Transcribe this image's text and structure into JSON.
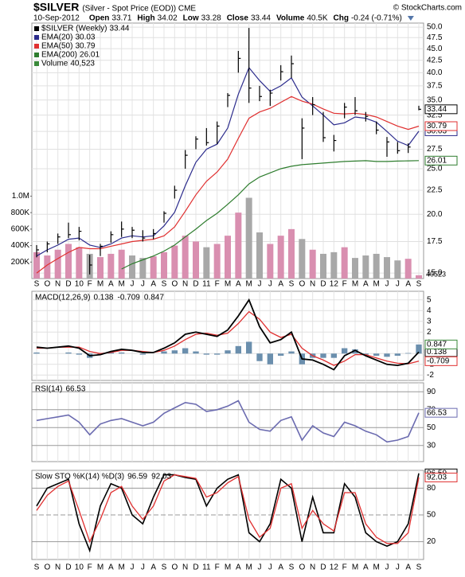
{
  "header": {
    "copyright": "© StockCharts.com",
    "date": "10-Sep-2012",
    "fields": [
      {
        "label": "Open",
        "value": 33.71
      },
      {
        "label": "High",
        "value": 34.02
      },
      {
        "label": "Low",
        "value": 33.28
      },
      {
        "label": "Close",
        "value": 33.44
      },
      {
        "label": "Volume",
        "value": "40.5K"
      },
      {
        "label": "Chg",
        "value": "-0.24 (-0.71%)"
      }
    ]
  },
  "chart_data": [
    {
      "type": "ohlc",
      "title": "$SILVER",
      "subtitle": "(Silver - Spot Price (EOD)) CME",
      "name": "$SILVER (Weekly)",
      "color": "#000000",
      "xtick_labels": [
        "S",
        "O",
        "N",
        "D",
        "10",
        "F",
        "M",
        "A",
        "M",
        "J",
        "J",
        "A",
        "S",
        "O",
        "N",
        "D",
        "11",
        "F",
        "M",
        "A",
        "M",
        "J",
        "J",
        "A",
        "S",
        "O",
        "N",
        "D",
        "12",
        "F",
        "M",
        "A",
        "M",
        "J",
        "J",
        "A",
        "S"
      ],
      "high": [
        17.2,
        17.5,
        18.2,
        19.2,
        18.8,
        16.4,
        17.3,
        18.4,
        19.3,
        18.8,
        18.5,
        18.6,
        20.3,
        23.0,
        27.4,
        29.3,
        30.5,
        31.5,
        36.2,
        44.5,
        49.8,
        37.5,
        36.8,
        41.5,
        43.5,
        32.0,
        35.5,
        33.0,
        29.5,
        34.5,
        35.5,
        33.0,
        31.5,
        29.2,
        28.5,
        28.3,
        34.02
      ],
      "low": [
        16.2,
        16.6,
        17.3,
        17.8,
        17.6,
        14.9,
        16.3,
        17.4,
        17.9,
        17.8,
        17.5,
        17.7,
        19.2,
        21.6,
        25.0,
        27.5,
        28.0,
        28.2,
        33.8,
        40.0,
        34.5,
        34.8,
        34.0,
        38.5,
        39.0,
        26.2,
        32.5,
        28.5,
        27.2,
        32.0,
        32.5,
        31.5,
        29.6,
        26.5,
        26.9,
        27.0,
        33.28
      ],
      "close": [
        16.8,
        17.3,
        17.9,
        18.1,
        18.4,
        15.6,
        17.1,
        18.1,
        18.6,
        18.5,
        17.8,
        18.2,
        20.1,
        22.5,
        26.7,
        28.9,
        28.4,
        30.8,
        35.8,
        42.9,
        37.1,
        35.6,
        36.2,
        40.2,
        41.8,
        30.5,
        34.2,
        29.1,
        28.7,
        33.8,
        33.2,
        32.3,
        30.2,
        28.5,
        27.3,
        27.8,
        33.44
      ],
      "overlays": [
        {
          "name": "EMA(20)",
          "color": "#2b2b8c",
          "values": [
            16.3,
            16.8,
            17.2,
            17.7,
            17.8,
            17.2,
            17.0,
            17.3,
            17.8,
            18.0,
            17.9,
            18.0,
            18.9,
            20.2,
            23.0,
            25.8,
            27.5,
            28.2,
            30.5,
            36.0,
            41.0,
            38.5,
            36.5,
            37.5,
            39.0,
            35.5,
            34.0,
            32.5,
            31.0,
            31.3,
            32.2,
            32.0,
            31.4,
            30.0,
            28.6,
            28.0,
            30.03
          ]
        },
        {
          "name": "EMA(50)",
          "color": "#e03030",
          "values": [
            15.0,
            15.6,
            16.1,
            16.6,
            17.0,
            16.9,
            16.9,
            17.1,
            17.3,
            17.5,
            17.6,
            17.7,
            18.0,
            18.8,
            20.3,
            22.0,
            23.5,
            24.6,
            26.2,
            29.0,
            32.0,
            33.0,
            33.6,
            34.6,
            35.6,
            34.8,
            34.3,
            33.5,
            32.8,
            32.7,
            32.8,
            32.6,
            32.2,
            31.5,
            30.8,
            30.3,
            30.79
          ]
        },
        {
          "name": "EMA(200)",
          "color": "#2e7d2e",
          "values": [
            null,
            null,
            null,
            null,
            null,
            null,
            null,
            null,
            15.3,
            15.7,
            16.0,
            16.3,
            16.7,
            17.2,
            17.9,
            18.6,
            19.4,
            20.1,
            21.0,
            22.0,
            23.2,
            24.0,
            24.5,
            25.0,
            25.3,
            25.5,
            25.6,
            25.7,
            25.8,
            25.9,
            25.95,
            26.0,
            25.9,
            25.9,
            25.95,
            25.98,
            26.01
          ]
        }
      ],
      "volume": {
        "name": "Volume",
        "last_label": "40,523",
        "up_color": "#d98fb0",
        "down_color": "#a8a8a8",
        "values": [
          320000,
          280000,
          350000,
          420000,
          380000,
          300000,
          260000,
          300000,
          350000,
          280000,
          250000,
          270000,
          320000,
          400000,
          520000,
          450000,
          380000,
          420000,
          520000,
          800000,
          980000,
          560000,
          420000,
          520000,
          600000,
          480000,
          350000,
          300000,
          320000,
          380000,
          250000,
          280000,
          300000,
          260000,
          220000,
          240000,
          40523
        ],
        "ylim": [
          0,
          3100000
        ],
        "yticks": [
          {
            "value": 200000,
            "label": "200K"
          },
          {
            "value": 400000,
            "label": "400K"
          },
          {
            "value": 600000,
            "label": "600K"
          },
          {
            "value": 800000,
            "label": "800K"
          },
          {
            "value": 1000000,
            "label": "1.0M"
          }
        ]
      },
      "ylim": [
        14.6,
        51
      ],
      "log_scale": true,
      "grid": true,
      "yticks": [
        {
          "value": 50,
          "label": "50.0"
        },
        47.5,
        {
          "value": 45,
          "label": "45.0"
        },
        42.5,
        {
          "value": 40,
          "label": "40.0"
        },
        37.5,
        {
          "value": 35,
          "label": "35.0"
        },
        32.5,
        {
          "value": 30,
          "label": "30.0"
        },
        27.5,
        {
          "value": 25,
          "label": "25.0"
        },
        22.5,
        {
          "value": 20,
          "label": "20.0"
        },
        17.5,
        {
          "value": 15,
          "label": "15.0"
        }
      ]
    },
    {
      "type": "macd",
      "name": "MACD(12,26,9)",
      "grid": true,
      "ylim": [
        -2.5,
        5.8
      ],
      "yticks": [
        5,
        4,
        3,
        2,
        1,
        0,
        -1,
        -2
      ],
      "series": [
        {
          "color": "#000000",
          "values": [
            0.6,
            0.5,
            0.6,
            0.7,
            0.5,
            -0.2,
            -0.1,
            0.2,
            0.4,
            0.3,
            0.1,
            0.1,
            0.5,
            1.0,
            1.8,
            2.0,
            1.8,
            1.6,
            2.2,
            3.5,
            5.0,
            2.5,
            1.0,
            1.3,
            2.0,
            -0.5,
            -0.6,
            -1.0,
            -1.5,
            -0.2,
            0.3,
            -0.2,
            -0.6,
            -1.0,
            -1.1,
            -0.9,
            0.138
          ]
        },
        {
          "color": "#e03030",
          "values": [
            0.5,
            0.5,
            0.6,
            0.6,
            0.6,
            0.2,
            0.0,
            0.1,
            0.3,
            0.3,
            0.2,
            0.1,
            0.3,
            0.7,
            1.3,
            1.8,
            1.9,
            1.7,
            1.9,
            2.8,
            3.9,
            3.2,
            2.0,
            1.5,
            1.8,
            0.5,
            -0.2,
            -0.6,
            -1.1,
            -0.7,
            -0.1,
            -0.1,
            -0.4,
            -0.7,
            -0.9,
            -0.95,
            -0.709
          ]
        },
        {
          "color": "#6b8fad",
          "label_color": "#3a8a3a",
          "values": [
            0.1,
            0,
            0,
            0.1,
            -0.1,
            -0.4,
            -0.1,
            0.1,
            0.1,
            0,
            -0.1,
            0,
            0.2,
            0.3,
            0.5,
            0.2,
            -0.1,
            -0.1,
            0.3,
            0.7,
            1.1,
            -0.7,
            -1.0,
            -0.2,
            0.2,
            -1.0,
            -0.4,
            -0.4,
            -0.4,
            0.5,
            0.4,
            -0.1,
            -0.2,
            -0.3,
            -0.2,
            0.05,
            0.847
          ]
        }
      ]
    },
    {
      "type": "line",
      "name": "RSI(14)",
      "grid": true,
      "ylim": [
        12,
        100
      ],
      "yticks": [
        90,
        70,
        50,
        30
      ],
      "series": [
        {
          "color": "#6b6bb0",
          "values": [
            58,
            60,
            62,
            64,
            56,
            42,
            54,
            58,
            60,
            56,
            52,
            56,
            66,
            72,
            78,
            76,
            68,
            70,
            74,
            80,
            56,
            48,
            46,
            58,
            62,
            36,
            52,
            44,
            40,
            56,
            52,
            46,
            42,
            34,
            36,
            40,
            66.53
          ]
        }
      ]
    },
    {
      "type": "line",
      "name": "Slow STO %K(14) %D(3)",
      "grid": true,
      "ylim": [
        0,
        100
      ],
      "yticks": [
        80,
        50,
        20
      ],
      "series": [
        {
          "color": "#000000",
          "values": [
            60,
            80,
            85,
            90,
            40,
            10,
            60,
            85,
            80,
            50,
            40,
            70,
            95,
            95,
            92,
            90,
            60,
            80,
            90,
            95,
            30,
            20,
            40,
            90,
            80,
            20,
            70,
            30,
            30,
            85,
            70,
            30,
            20,
            15,
            20,
            40,
            96.59
          ]
        },
        {
          "color": "#e03030",
          "values": [
            55,
            72,
            82,
            88,
            55,
            20,
            45,
            75,
            82,
            60,
            45,
            60,
            88,
            95,
            93,
            91,
            70,
            75,
            86,
            93,
            45,
            25,
            35,
            80,
            85,
            35,
            55,
            40,
            32,
            75,
            75,
            40,
            25,
            18,
            18,
            30,
            92.03
          ]
        }
      ]
    }
  ]
}
